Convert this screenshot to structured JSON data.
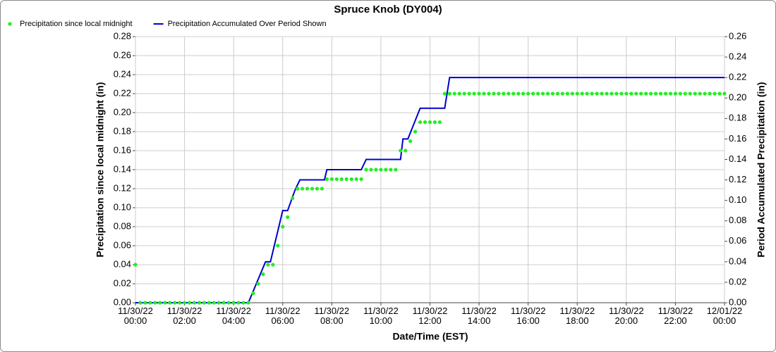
{
  "chart_data": {
    "type": "line",
    "title": "Spruce Knob (DY004)",
    "xlabel": "Date/Time (EST)",
    "ylabel": "Precipitation since local midnight (in)",
    "y2label": "Period Accumulated Precipitation (in)",
    "xlim": [
      0,
      24
    ],
    "xticks": [
      {
        "value": 0,
        "label": "11/30/22\n00:00"
      },
      {
        "value": 2,
        "label": "11/30/22\n02:00"
      },
      {
        "value": 4,
        "label": "11/30/22\n04:00"
      },
      {
        "value": 6,
        "label": "11/30/22\n06:00"
      },
      {
        "value": 8,
        "label": "11/30/22\n08:00"
      },
      {
        "value": 10,
        "label": "11/30/22\n10:00"
      },
      {
        "value": 12,
        "label": "11/30/22\n12:00"
      },
      {
        "value": 14,
        "label": "11/30/22\n14:00"
      },
      {
        "value": 16,
        "label": "11/30/22\n16:00"
      },
      {
        "value": 18,
        "label": "11/30/22\n18:00"
      },
      {
        "value": 20,
        "label": "11/30/22\n20:00"
      },
      {
        "value": 22,
        "label": "11/30/22\n22:00"
      },
      {
        "value": 24,
        "label": "12/01/22\n00:00"
      }
    ],
    "ylim": [
      0,
      0.28
    ],
    "yticks": [
      {
        "value": 0,
        "label": "0.00"
      },
      {
        "value": 0.02,
        "label": "0.02"
      },
      {
        "value": 0.04,
        "label": "0.04"
      },
      {
        "value": 0.06,
        "label": "0.06"
      },
      {
        "value": 0.08,
        "label": "0.08"
      },
      {
        "value": 0.1,
        "label": "0.10"
      },
      {
        "value": 0.12,
        "label": "0.12"
      },
      {
        "value": 0.14,
        "label": "0.14"
      },
      {
        "value": 0.16,
        "label": "0.16"
      },
      {
        "value": 0.18,
        "label": "0.18"
      },
      {
        "value": 0.2,
        "label": "0.20"
      },
      {
        "value": 0.22,
        "label": "0.22"
      },
      {
        "value": 0.24,
        "label": "0.24"
      },
      {
        "value": 0.26,
        "label": "0.26"
      },
      {
        "value": 0.28,
        "label": "0.28"
      }
    ],
    "y2lim": [
      0,
      0.26
    ],
    "y2ticks": [
      {
        "value": 0,
        "label": "0.00"
      },
      {
        "value": 0.02,
        "label": "0.02"
      },
      {
        "value": 0.04,
        "label": "0.04"
      },
      {
        "value": 0.06,
        "label": "0.06"
      },
      {
        "value": 0.08,
        "label": "0.08"
      },
      {
        "value": 0.1,
        "label": "0.10"
      },
      {
        "value": 0.12,
        "label": "0.12"
      },
      {
        "value": 0.14,
        "label": "0.14"
      },
      {
        "value": 0.16,
        "label": "0.16"
      },
      {
        "value": 0.18,
        "label": "0.18"
      },
      {
        "value": 0.2,
        "label": "0.20"
      },
      {
        "value": 0.22,
        "label": "0.22"
      },
      {
        "value": 0.24,
        "label": "0.24"
      },
      {
        "value": 0.26,
        "label": "0.26"
      }
    ],
    "grid": true,
    "series": [
      {
        "name": "Precipitation since local midnight",
        "color": "#22ee22",
        "style": "dots",
        "x": [
          0,
          0.2,
          0.4,
          0.6,
          0.8,
          1,
          1.2,
          1.4,
          1.6,
          1.8,
          2,
          2.2,
          2.4,
          2.6,
          2.8,
          3,
          3.2,
          3.4,
          3.6,
          3.8,
          4,
          4.2,
          4.4,
          4.6,
          4.8,
          5,
          5.2,
          5.4,
          5.6,
          5.8,
          6,
          6.2,
          6.4,
          6.6,
          6.8,
          7,
          7.2,
          7.4,
          7.6,
          7.8,
          8,
          8.2,
          8.4,
          8.6,
          8.8,
          9,
          9.2,
          9.4,
          9.6,
          9.8,
          10,
          10.2,
          10.4,
          10.6,
          10.8,
          11,
          11.2,
          11.4,
          11.6,
          11.8,
          12,
          12.2,
          12.4,
          12.6,
          12.8,
          13,
          13.2,
          13.4,
          13.6,
          13.8,
          14,
          14.2,
          14.4,
          14.6,
          14.8,
          15,
          15.2,
          15.4,
          15.6,
          15.8,
          16,
          16.2,
          16.4,
          16.6,
          16.8,
          17,
          17.2,
          17.4,
          17.6,
          17.8,
          18,
          18.2,
          18.4,
          18.6,
          18.8,
          19,
          19.2,
          19.4,
          19.6,
          19.8,
          20,
          20.2,
          20.4,
          20.6,
          20.8,
          21,
          21.2,
          21.4,
          21.6,
          21.8,
          22,
          22.2,
          22.4,
          22.6,
          22.8,
          23,
          23.2,
          23.4,
          23.6,
          23.8,
          24
        ],
        "values": [
          0.04,
          0,
          0,
          0,
          0,
          0,
          0,
          0,
          0,
          0,
          0,
          0,
          0,
          0,
          0,
          0,
          0,
          0,
          0,
          0,
          0,
          0,
          0,
          0,
          0.01,
          0.02,
          0.03,
          0.04,
          0.04,
          0.06,
          0.08,
          0.09,
          0.11,
          0.12,
          0.12,
          0.12,
          0.12,
          0.12,
          0.12,
          0.13,
          0.13,
          0.13,
          0.13,
          0.13,
          0.13,
          0.13,
          0.13,
          0.14,
          0.14,
          0.14,
          0.14,
          0.14,
          0.14,
          0.14,
          0.16,
          0.16,
          0.17,
          0.18,
          0.19,
          0.19,
          0.19,
          0.19,
          0.19,
          0.22,
          0.22,
          0.22,
          0.22,
          0.22,
          0.22,
          0.22,
          0.22,
          0.22,
          0.22,
          0.22,
          0.22,
          0.22,
          0.22,
          0.22,
          0.22,
          0.22,
          0.22,
          0.22,
          0.22,
          0.22,
          0.22,
          0.22,
          0.22,
          0.22,
          0.22,
          0.22,
          0.22,
          0.22,
          0.22,
          0.22,
          0.22,
          0.22,
          0.22,
          0.22,
          0.22,
          0.22,
          0.22,
          0.22,
          0.22,
          0.22,
          0.22,
          0.22,
          0.22,
          0.22,
          0.22,
          0.22,
          0.22,
          0.22,
          0.22,
          0.22,
          0.22,
          0.22,
          0.22,
          0.22,
          0.22,
          0.22,
          0.22
        ]
      },
      {
        "name": "Precipitation Accumulated Over Period Shown",
        "color": "#0000cc",
        "style": "line",
        "axis": "y2",
        "x": [
          0,
          4.6,
          5.3,
          5.5,
          5.9,
          6,
          6.2,
          6.5,
          6.7,
          7.7,
          7.8,
          9.2,
          9.4,
          10.8,
          10.9,
          11.1,
          11.6,
          12.6,
          12.8,
          24
        ],
        "values": [
          0,
          0,
          0.04,
          0.04,
          0.08,
          0.09,
          0.09,
          0.11,
          0.12,
          0.12,
          0.13,
          0.13,
          0.14,
          0.14,
          0.16,
          0.16,
          0.19,
          0.19,
          0.22,
          0.22
        ]
      }
    ]
  }
}
